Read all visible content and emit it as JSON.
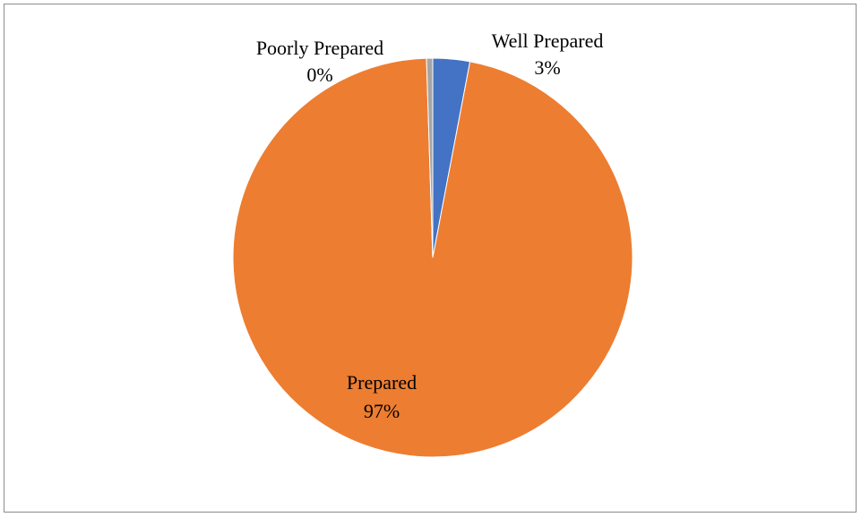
{
  "chart_data": {
    "type": "pie",
    "title": "",
    "slices": [
      {
        "label": "Well Prepared",
        "value": 3,
        "value_label": "3%",
        "color": "#4472C4"
      },
      {
        "label": "Prepared",
        "value": 97,
        "value_label": "97%",
        "color": "#ED7D31"
      },
      {
        "label": "Poorly Prepared",
        "value": 0.5,
        "value_label": "0%",
        "color": "#A5A5A5"
      }
    ],
    "start_angle": "12 o'clock",
    "direction": "clockwise",
    "legend": "none",
    "data_labels": "category name and percentage"
  }
}
